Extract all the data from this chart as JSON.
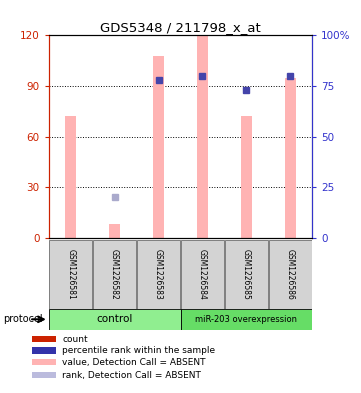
{
  "title": "GDS5348 / 211798_x_at",
  "samples": [
    "GSM1226581",
    "GSM1226582",
    "GSM1226583",
    "GSM1226584",
    "GSM1226585",
    "GSM1226586"
  ],
  "bar_values": [
    72,
    8,
    108,
    120,
    72,
    95
  ],
  "rank_values": [
    null,
    20,
    78,
    80,
    73,
    80
  ],
  "rank_absent_flags": [
    false,
    true,
    false,
    false,
    false,
    false
  ],
  "bar_color": "#ffb3b3",
  "rank_color_normal": "#4444aa",
  "rank_color_absent": "#aaaacc",
  "left_yticks": [
    0,
    30,
    60,
    90,
    120
  ],
  "right_yticks": [
    0,
    25,
    50,
    75,
    100
  ],
  "right_yticklabels": [
    "0",
    "25",
    "50",
    "75",
    "100%"
  ],
  "ylim_left": [
    0,
    120
  ],
  "ylim_right": [
    0,
    100
  ],
  "protocol_labels": [
    "control",
    "miR-203 overexpression"
  ],
  "control_color": "#90ee90",
  "overexp_color": "#66dd66",
  "legend_colors": [
    "#cc2200",
    "#3333aa",
    "#ffb3b3",
    "#bbbbdd"
  ],
  "legend_labels": [
    "count",
    "percentile rank within the sample",
    "value, Detection Call = ABSENT",
    "rank, Detection Call = ABSENT"
  ],
  "bg_color": "#ffffff",
  "tick_left_color": "#cc2200",
  "tick_right_color": "#3333cc",
  "bar_width": 0.25
}
